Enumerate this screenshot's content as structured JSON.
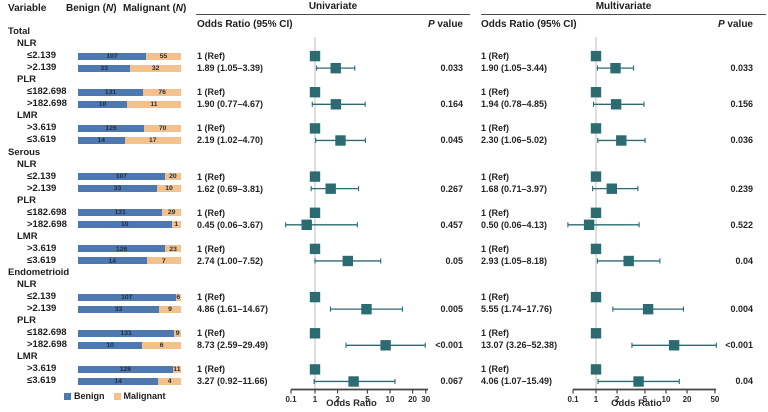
{
  "header": {
    "variable": "Variable",
    "benign_prefix": "Benign (",
    "malignant_prefix": "Malignant (",
    "n_symbol": "N",
    "paren_close": ")",
    "univariate": "Univariate",
    "multivariate": "Multivariate",
    "or_ci": "Odds Ratio (95% CI)",
    "p_symbol": "P",
    "p_value_rest": " value"
  },
  "legend": {
    "benign": "Benign",
    "malignant": "Malignant"
  },
  "colors": {
    "benign": "#4d79b0",
    "malignant": "#f4c18c",
    "marker": "#2c6b72",
    "refline": "#c9c9c9",
    "axis": "#454545",
    "text": "#2a2a2a"
  },
  "chart_data": {
    "type": "forest",
    "or_axis": {
      "label": "Odds Ratio",
      "scale": "log",
      "univariate_ticks": [
        0.1,
        1,
        2,
        5,
        10,
        20,
        30
      ],
      "multivariate_ticks": [
        0.1,
        1,
        2,
        5,
        10,
        20,
        50
      ]
    },
    "sections": [
      {
        "name": "Total",
        "subgroups": [
          {
            "name": "NLR",
            "rows": [
              {
                "label": "≤2.139",
                "benign": 107,
                "malignant": 55,
                "uni": {
                  "text": "1 (Ref)",
                  "or": 1
                },
                "multi": {
                  "text": "1 (Ref)",
                  "or": 1
                }
              },
              {
                "label": ">2.139",
                "benign": 33,
                "malignant": 32,
                "uni": {
                  "text": "1.89 (1.05–3.39)",
                  "or": 1.89,
                  "lo": 1.05,
                  "hi": 3.39,
                  "p": "0.033"
                },
                "multi": {
                  "text": "1.90 (1.05–3.44)",
                  "or": 1.9,
                  "lo": 1.05,
                  "hi": 3.44,
                  "p": "0.033"
                }
              }
            ]
          },
          {
            "name": "PLR",
            "rows": [
              {
                "label": "≤182.698",
                "benign": 131,
                "malignant": 76,
                "uni": {
                  "text": "1 (Ref)",
                  "or": 1
                },
                "multi": {
                  "text": "1 (Ref)",
                  "or": 1
                }
              },
              {
                "label": ">182.698",
                "benign": 10,
                "malignant": 11,
                "uni": {
                  "text": "1.90 (0.77–4.67)",
                  "or": 1.9,
                  "lo": 0.77,
                  "hi": 4.67,
                  "p": "0.164"
                },
                "multi": {
                  "text": "1.94 (0.78–4.85)",
                  "or": 1.94,
                  "lo": 0.78,
                  "hi": 4.85,
                  "p": "0.156"
                }
              }
            ]
          },
          {
            "name": "LMR",
            "rows": [
              {
                "label": ">3.619",
                "benign": 126,
                "malignant": 70,
                "uni": {
                  "text": "1 (Ref)",
                  "or": 1
                },
                "multi": {
                  "text": "1 (Ref)",
                  "or": 1
                }
              },
              {
                "label": "≤3.619",
                "benign": 14,
                "malignant": 17,
                "uni": {
                  "text": "2.19 (1.02–4.70)",
                  "or": 2.19,
                  "lo": 1.02,
                  "hi": 4.7,
                  "p": "0.045"
                },
                "multi": {
                  "text": "2.30 (1.06–5.02)",
                  "or": 2.3,
                  "lo": 1.06,
                  "hi": 5.02,
                  "p": "0.036"
                }
              }
            ]
          }
        ]
      },
      {
        "name": "Serous",
        "subgroups": [
          {
            "name": "NLR",
            "rows": [
              {
                "label": "≤2.139",
                "benign": 107,
                "malignant": 20,
                "uni": {
                  "text": "1 (Ref)",
                  "or": 1
                },
                "multi": {
                  "text": "1 (Ref)",
                  "or": 1
                }
              },
              {
                "label": ">2.139",
                "benign": 33,
                "malignant": 10,
                "uni": {
                  "text": "1.62 (0.69–3.81)",
                  "or": 1.62,
                  "lo": 0.69,
                  "hi": 3.81,
                  "p": "0.267"
                },
                "multi": {
                  "text": "1.68 (0.71–3.97)",
                  "or": 1.68,
                  "lo": 0.71,
                  "hi": 3.97,
                  "p": "0.239"
                }
              }
            ]
          },
          {
            "name": "PLR",
            "rows": [
              {
                "label": "≤182.698",
                "benign": 131,
                "malignant": 29,
                "uni": {
                  "text": "1 (Ref)",
                  "or": 1
                },
                "multi": {
                  "text": "1 (Ref)",
                  "or": 1
                }
              },
              {
                "label": ">182.698",
                "benign": 10,
                "malignant": 1,
                "uni": {
                  "text": "0.45 (0.06–3.67)",
                  "or": 0.45,
                  "lo": 0.06,
                  "hi": 3.67,
                  "p": "0.457"
                },
                "multi": {
                  "text": "0.50 (0.06–4.13)",
                  "or": 0.5,
                  "lo": 0.06,
                  "hi": 4.13,
                  "p": "0.522"
                }
              }
            ]
          },
          {
            "name": "LMR",
            "rows": [
              {
                "label": ">3.619",
                "benign": 126,
                "malignant": 23,
                "uni": {
                  "text": "1 (Ref)",
                  "or": 1
                },
                "multi": {
                  "text": "1 (Ref)",
                  "or": 1
                }
              },
              {
                "label": "≤3.619",
                "benign": 14,
                "malignant": 7,
                "uni": {
                  "text": "2.74 (1.00–7.52)",
                  "or": 2.74,
                  "lo": 1.0,
                  "hi": 7.52,
                  "p": "0.05"
                },
                "multi": {
                  "text": "2.93 (1.05–8.18)",
                  "or": 2.93,
                  "lo": 1.05,
                  "hi": 8.18,
                  "p": "0.04"
                }
              }
            ]
          }
        ]
      },
      {
        "name": "Endometrioid",
        "subgroups": [
          {
            "name": "NLR",
            "rows": [
              {
                "label": "≤2.139",
                "benign": 107,
                "malignant": 6,
                "uni": {
                  "text": "1 (Ref)",
                  "or": 1
                },
                "multi": {
                  "text": "1 (Ref)",
                  "or": 1
                }
              },
              {
                "label": ">2.139",
                "benign": 33,
                "malignant": 9,
                "uni": {
                  "text": "4.86 (1.61–14.67)",
                  "or": 4.86,
                  "lo": 1.61,
                  "hi": 14.67,
                  "p": "0.005"
                },
                "multi": {
                  "text": "5.55 (1.74–17.76)",
                  "or": 5.55,
                  "lo": 1.74,
                  "hi": 17.76,
                  "p": "0.004"
                }
              }
            ]
          },
          {
            "name": "PLR",
            "rows": [
              {
                "label": "≤182.698",
                "benign": 131,
                "malignant": 9,
                "uni": {
                  "text": "1 (Ref)",
                  "or": 1
                },
                "multi": {
                  "text": "1 (Ref)",
                  "or": 1
                }
              },
              {
                "label": ">182.698",
                "benign": 10,
                "malignant": 6,
                "uni": {
                  "text": "8.73 (2.59–29.49)",
                  "or": 8.73,
                  "lo": 2.59,
                  "hi": 29.49,
                  "p": "<0.001"
                },
                "multi": {
                  "text": "13.07 (3.26–52.38)",
                  "or": 13.07,
                  "lo": 3.26,
                  "hi": 52.38,
                  "p": "<0.001"
                }
              }
            ]
          },
          {
            "name": "LMR",
            "rows": [
              {
                "label": ">3.619",
                "benign": 126,
                "malignant": 11,
                "uni": {
                  "text": "1 (Ref)",
                  "or": 1
                },
                "multi": {
                  "text": "1 (Ref)",
                  "or": 1
                }
              },
              {
                "label": "≤3.619",
                "benign": 14,
                "malignant": 4,
                "uni": {
                  "text": "3.27 (0.92–11.66)",
                  "or": 3.27,
                  "lo": 0.92,
                  "hi": 11.66,
                  "p": "0.067"
                },
                "multi": {
                  "text": "4.06 (1.07–15.49)",
                  "or": 4.06,
                  "lo": 1.07,
                  "hi": 15.49,
                  "p": "0.04"
                }
              }
            ]
          }
        ]
      }
    ]
  }
}
